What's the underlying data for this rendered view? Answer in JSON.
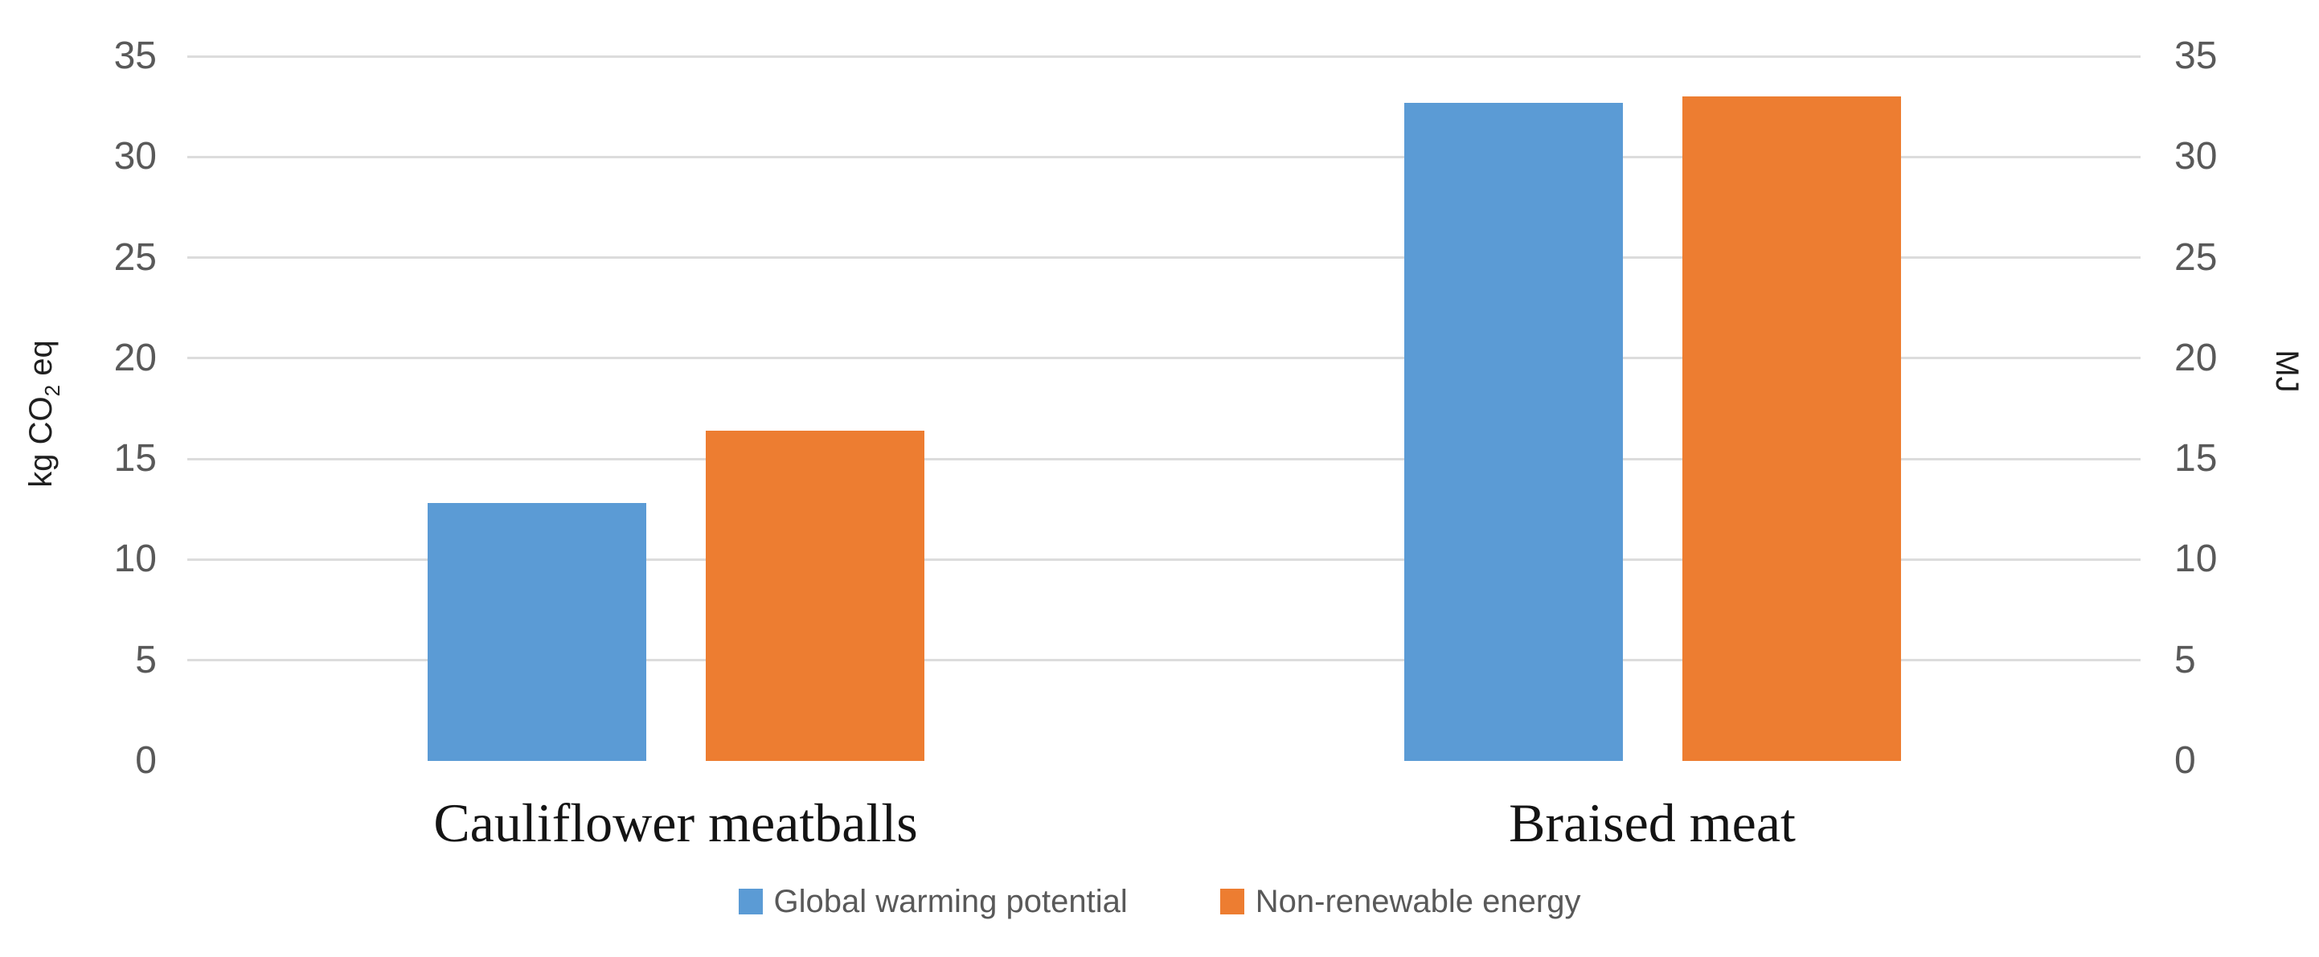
{
  "chart_data": {
    "type": "bar",
    "categories": [
      "Cauliflower meatballs",
      "Braised meat"
    ],
    "series": [
      {
        "name": "Global warming potential",
        "color": "#5B9BD5",
        "values": [
          12.8,
          32.7
        ]
      },
      {
        "name": "Non-renewable energy",
        "color": "#ED7D31",
        "values": [
          16.4,
          33.0
        ]
      }
    ],
    "title": "",
    "xlabel": "",
    "left_axis": {
      "title_pre": "kg CO",
      "title_sub": "2",
      "title_post": " eq",
      "ticks": [
        0,
        5,
        10,
        15,
        20,
        25,
        30,
        35
      ]
    },
    "right_axis": {
      "title": "MJ",
      "ticks": [
        0,
        5,
        10,
        15,
        20,
        25,
        30,
        35
      ]
    },
    "ylim": [
      0,
      35
    ],
    "grid": true,
    "gridline_color": "#dcdcdc",
    "legend_position": "bottom"
  }
}
